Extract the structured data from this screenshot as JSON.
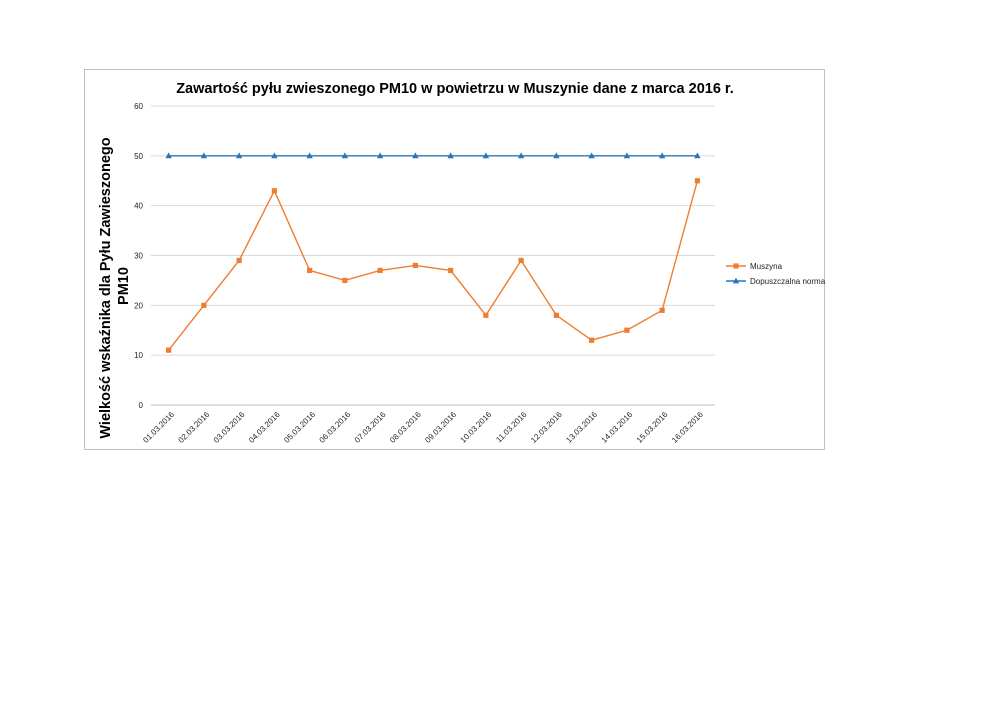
{
  "chart_data": {
    "type": "line",
    "title": "Zawartość pyłu zwieszonego PM10 w powietrzu w Muszynie dane z marca 2016 r.",
    "xlabel": "",
    "ylabel_lines": [
      "Wielkość  wskaźnika dla Pyłu Zawieszonego",
      "PM10"
    ],
    "categories": [
      "01.03.2016",
      "02.03.2016",
      "03.03.2016",
      "04.03.2016",
      "05.03.2016",
      "06.03.2016",
      "07.03.2016",
      "08.03.2016",
      "09.03.2016",
      "10.03.2016",
      "11.03.2016",
      "12.03.2016",
      "13.03.2016",
      "14.03.2016",
      "15.03.2016",
      "16.03.2016"
    ],
    "y_ticks": [
      0,
      10,
      20,
      30,
      40,
      50,
      60
    ],
    "ylim": [
      0,
      60
    ],
    "grid": true,
    "legend_position": "right",
    "series": [
      {
        "name": "Muszyna",
        "color": "#ED7D31",
        "marker": "square",
        "values": [
          11,
          20,
          29,
          43,
          27,
          25,
          27,
          28,
          27,
          18,
          29,
          18,
          13,
          15,
          19,
          45
        ]
      },
      {
        "name": "Dopuszczalna norma",
        "color": "#2E75B6",
        "marker": "triangle",
        "values": [
          50,
          50,
          50,
          50,
          50,
          50,
          50,
          50,
          50,
          50,
          50,
          50,
          50,
          50,
          50,
          50
        ]
      }
    ]
  }
}
